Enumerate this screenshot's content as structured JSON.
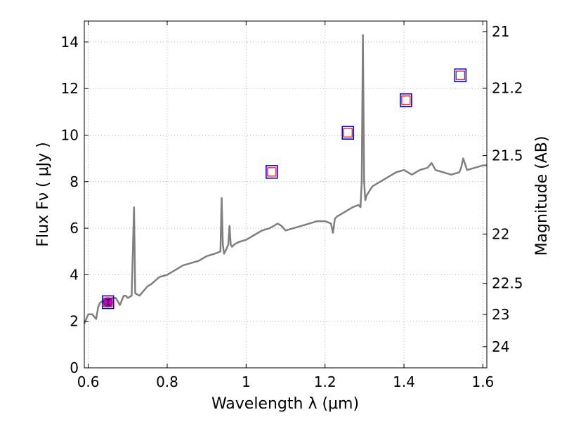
{
  "chart_data": {
    "type": "line",
    "xlabel": "Wavelength  λ (μm)",
    "ylabel": "Flux  Fν  ( μJy )",
    "y2label": "Magnitude (AB)",
    "xlim": [
      0.59,
      1.61
    ],
    "ylim": [
      0,
      14.9
    ],
    "grid": true,
    "xticks": [
      0.6,
      0.8,
      1.0,
      1.2,
      1.4,
      1.6
    ],
    "xtick_labels": [
      "0.6",
      "0.8",
      "1",
      "1.2",
      "1.4",
      "1.6"
    ],
    "yticks": [
      0,
      2,
      4,
      6,
      8,
      10,
      12,
      14
    ],
    "ytick_labels": [
      "0",
      "2",
      "4",
      "6",
      "8",
      "10",
      "12",
      "14"
    ],
    "y2ticks": [
      {
        "label": "21",
        "flux": 14.45
      },
      {
        "label": "21.2",
        "flux": 12.02
      },
      {
        "label": "21.5",
        "flux": 9.12
      },
      {
        "label": "22",
        "flux": 5.75
      },
      {
        "label": "22.5",
        "flux": 3.63
      },
      {
        "label": "23",
        "flux": 2.29
      },
      {
        "label": "24",
        "flux": 0.91
      }
    ],
    "series": [
      {
        "name": "spectrum",
        "color": "#7f7f7f",
        "x": [
          0.59,
          0.6,
          0.61,
          0.62,
          0.625,
          0.63,
          0.64,
          0.65,
          0.66,
          0.67,
          0.68,
          0.69,
          0.695,
          0.7,
          0.71,
          0.713,
          0.716,
          0.719,
          0.73,
          0.74,
          0.75,
          0.76,
          0.78,
          0.8,
          0.82,
          0.84,
          0.86,
          0.88,
          0.9,
          0.92,
          0.935,
          0.938,
          0.941,
          0.944,
          0.95,
          0.955,
          0.958,
          0.961,
          0.964,
          0.97,
          0.98,
          1.0,
          1.02,
          1.04,
          1.06,
          1.08,
          1.09,
          1.1,
          1.12,
          1.14,
          1.16,
          1.18,
          1.2,
          1.215,
          1.22,
          1.225,
          1.23,
          1.25,
          1.27,
          1.285,
          1.29,
          1.293,
          1.296,
          1.299,
          1.302,
          1.305,
          1.32,
          1.34,
          1.36,
          1.38,
          1.4,
          1.42,
          1.44,
          1.46,
          1.47,
          1.48,
          1.5,
          1.52,
          1.54,
          1.545,
          1.55,
          1.56,
          1.58,
          1.6,
          1.61
        ],
        "y": [
          1.9,
          2.3,
          2.3,
          2.1,
          2.6,
          2.8,
          2.9,
          2.8,
          3.0,
          3.0,
          2.7,
          3.1,
          3.1,
          3.0,
          3.1,
          5.0,
          6.9,
          3.2,
          3.1,
          3.3,
          3.5,
          3.6,
          3.9,
          4.0,
          4.2,
          4.4,
          4.5,
          4.6,
          4.8,
          4.9,
          5.0,
          7.3,
          5.3,
          4.9,
          5.1,
          5.3,
          6.1,
          5.3,
          5.2,
          5.3,
          5.4,
          5.5,
          5.7,
          5.9,
          6.0,
          6.2,
          6.1,
          5.9,
          6.0,
          6.1,
          6.2,
          6.3,
          6.3,
          6.2,
          5.8,
          6.4,
          6.5,
          6.7,
          6.9,
          7.0,
          6.9,
          8.0,
          14.3,
          8.0,
          7.2,
          7.4,
          7.8,
          8.0,
          8.2,
          8.4,
          8.5,
          8.3,
          8.5,
          8.6,
          8.8,
          8.5,
          8.4,
          8.3,
          8.4,
          8.6,
          9.0,
          8.5,
          8.6,
          8.7,
          8.7
        ]
      }
    ],
    "photometry": [
      {
        "x": 0.65,
        "y": 2.82,
        "marker": "square",
        "filled": true
      },
      {
        "x": 1.065,
        "y": 8.42,
        "marker": "square"
      },
      {
        "x": 1.258,
        "y": 10.1,
        "marker": "square"
      },
      {
        "x": 1.405,
        "y": 11.5,
        "marker": "square"
      },
      {
        "x": 1.543,
        "y": 12.57,
        "marker": "square"
      }
    ],
    "colors": {
      "spectrum": "#7f7f7f",
      "square_outer": "#0000ff",
      "square_inner": "#ff0000",
      "filled_point": "#c000c0",
      "grid": "#b0b0b0"
    }
  }
}
